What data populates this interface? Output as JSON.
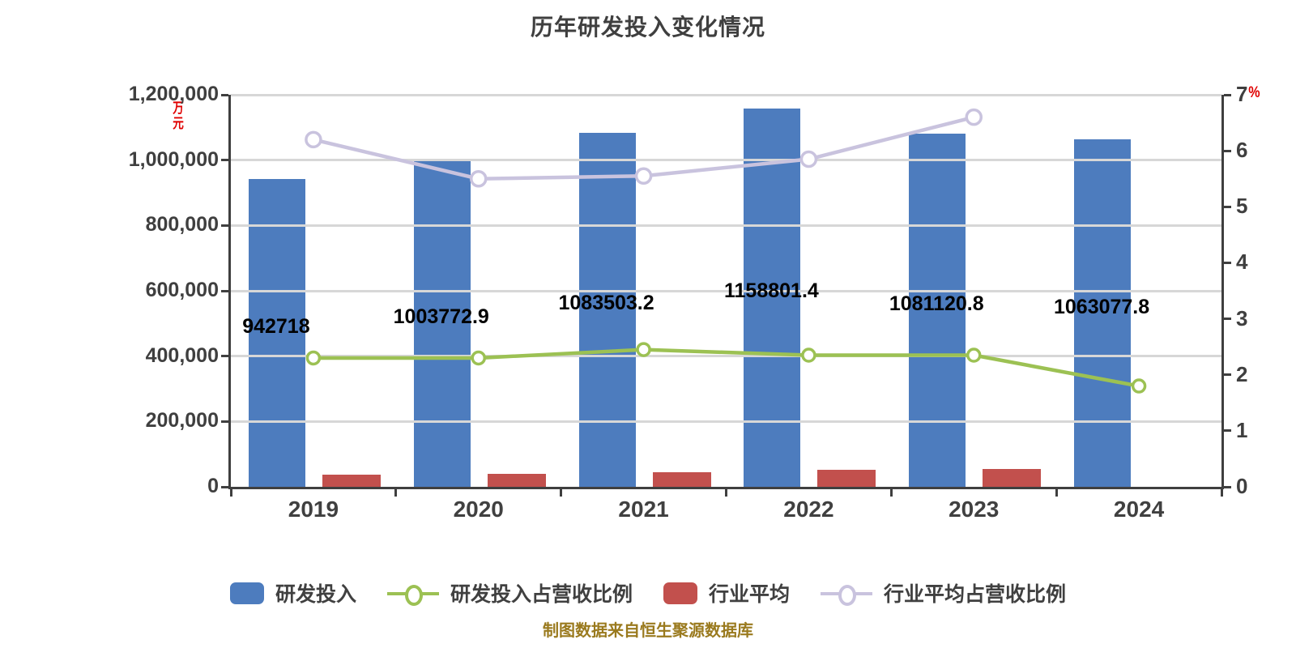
{
  "title": "历年研发投入变化情况",
  "footer": "制图数据来自恒生聚源数据库",
  "left_axis": {
    "unit": "万元",
    "min": 0,
    "max": 1200000,
    "ticks": [
      {
        "label": "1,200,000",
        "value": 1200000
      },
      {
        "label": "1,000,000",
        "value": 1000000
      },
      {
        "label": "800,000",
        "value": 800000
      },
      {
        "label": "600,000",
        "value": 600000
      },
      {
        "label": "400,000",
        "value": 400000
      },
      {
        "label": "200,000",
        "value": 200000
      },
      {
        "label": "0",
        "value": 0
      }
    ]
  },
  "right_axis": {
    "unit": "%",
    "min": 0,
    "max": 7,
    "ticks": [
      {
        "label": "7",
        "value": 7
      },
      {
        "label": "6",
        "value": 6
      },
      {
        "label": "5",
        "value": 5
      },
      {
        "label": "4",
        "value": 4
      },
      {
        "label": "3",
        "value": 3
      },
      {
        "label": "2",
        "value": 2
      },
      {
        "label": "1",
        "value": 1
      },
      {
        "label": "0",
        "value": 0
      }
    ]
  },
  "chart_data": {
    "type": "bar+line combo",
    "categories": [
      "2019",
      "2020",
      "2021",
      "2022",
      "2023",
      "2024"
    ],
    "ylim_left": [
      0,
      1200000
    ],
    "ylim_right": [
      0,
      7
    ],
    "grid": true,
    "legend_position": "bottom",
    "series": [
      {
        "name": "研发投入",
        "type": "bar",
        "axis": "left",
        "color": "#4d7cbe",
        "values": [
          942718,
          1003772.9,
          1083503.2,
          1158801.4,
          1081120.8,
          1063077.8
        ],
        "labels": [
          "942718",
          "1003772.9",
          "1083503.2",
          "1158801.4",
          "1081120.8",
          "1063077.8"
        ]
      },
      {
        "name": "行业平均",
        "type": "bar",
        "axis": "left",
        "color": "#c2504d",
        "values": [
          37000,
          40000,
          45000,
          52000,
          55000,
          null
        ],
        "labels": []
      },
      {
        "name": "研发投入占营收比例",
        "type": "line",
        "axis": "right",
        "color": "#9cc153",
        "values": [
          2.3,
          2.3,
          2.45,
          2.35,
          2.35,
          1.8
        ]
      },
      {
        "name": "行业平均占营收比例",
        "type": "line",
        "axis": "right",
        "color": "#c9c3de",
        "values": [
          6.2,
          5.5,
          5.55,
          5.85,
          6.6,
          null
        ]
      }
    ]
  },
  "legend": [
    {
      "label": "研发投入",
      "swatch": "bar",
      "color": "#4d7cbe"
    },
    {
      "label": "研发投入占营收比例",
      "swatch": "line",
      "color": "#9cc153"
    },
    {
      "label": "行业平均",
      "swatch": "bar",
      "color": "#c2504d"
    },
    {
      "label": "行业平均占营收比例",
      "swatch": "line",
      "color": "#c9c3de"
    }
  ],
  "colors": {
    "title": "#3f3f3f",
    "axis_line": "#3f3f3f",
    "gridline": "#d7d7d7",
    "unit_label": "#e00000",
    "bar_blue": "#4d7cbe",
    "bar_red": "#c2504d",
    "line_green": "#9cc153",
    "line_lavender": "#c9c3de",
    "footer": "#9a7a1e"
  }
}
